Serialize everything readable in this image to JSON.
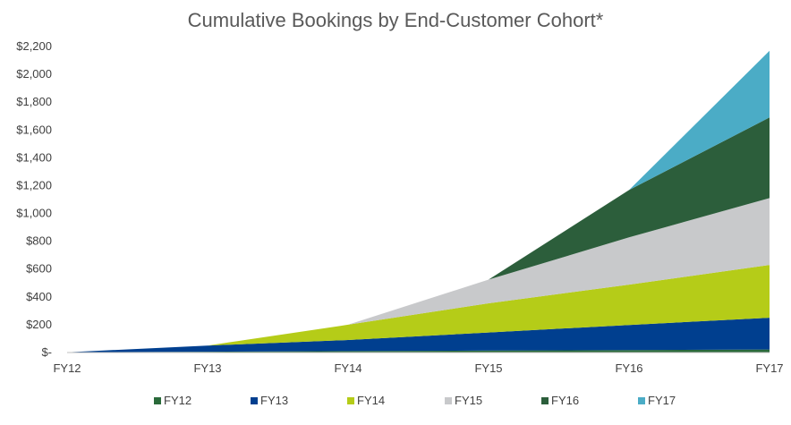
{
  "chart_data": {
    "type": "area",
    "stacked": true,
    "title": "Cumulative Bookings by End-Customer Cohort*",
    "xlabel": "",
    "ylabel": "",
    "categories": [
      "FY12",
      "FY13",
      "FY14",
      "FY15",
      "FY16",
      "FY17"
    ],
    "ylim": [
      0,
      2200
    ],
    "yticks": [
      0,
      200,
      400,
      600,
      800,
      1000,
      1200,
      1400,
      1600,
      1800,
      2000,
      2200
    ],
    "ytick_labels": [
      "$-",
      "$200",
      "$400",
      "$600",
      "$800",
      "$1,000",
      "$1,200",
      "$1,400",
      "$1,600",
      "$1,800",
      "$2,000",
      "$2,200"
    ],
    "grid": false,
    "legend_position": "bottom",
    "series": [
      {
        "name": "FY12",
        "color": "#2a6a3a",
        "values": [
          2,
          6,
          10,
          14,
          18,
          22
        ]
      },
      {
        "name": "FY13",
        "color": "#003f8f",
        "values": [
          null,
          44,
          80,
          130,
          180,
          228
        ]
      },
      {
        "name": "FY14",
        "color": "#b5cc18",
        "values": [
          null,
          null,
          110,
          210,
          290,
          380
        ]
      },
      {
        "name": "FY15",
        "color": "#c8c9cb",
        "values": [
          null,
          null,
          null,
          170,
          340,
          480
        ]
      },
      {
        "name": "FY16",
        "color": "#2c5e3b",
        "values": [
          null,
          null,
          null,
          null,
          340,
          580
        ]
      },
      {
        "name": "FY17",
        "color": "#4bacc6",
        "values": [
          null,
          null,
          null,
          null,
          null,
          480
        ]
      }
    ]
  }
}
